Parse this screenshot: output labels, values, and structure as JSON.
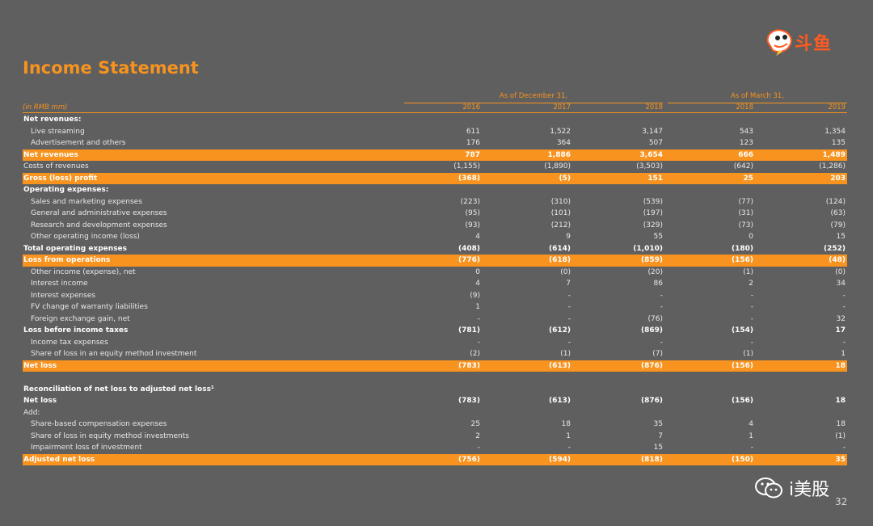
{
  "title": "Income Statement",
  "logo": {
    "text": "斗鱼"
  },
  "header": {
    "group_dec": "As of December 31,",
    "group_mar": "As of March 31,",
    "unit": "(in RMB mm)",
    "years": [
      "2016",
      "2017",
      "2018",
      "2018",
      "2019"
    ]
  },
  "rows": [
    {
      "label": "Net revenues:",
      "style": "bold",
      "indent": false,
      "values": [
        "",
        "",
        "",
        "",
        ""
      ]
    },
    {
      "label": "Live streaming",
      "style": "normal",
      "indent": true,
      "values": [
        "611",
        "1,522",
        "3,147",
        "543",
        "1,354"
      ]
    },
    {
      "label": "Advertisement and others",
      "style": "normal",
      "indent": true,
      "values": [
        "176",
        "364",
        "507",
        "123",
        "135"
      ]
    },
    {
      "label": "Net revenues",
      "style": "hl",
      "indent": false,
      "values": [
        "787",
        "1,886",
        "3,654",
        "666",
        "1,489"
      ]
    },
    {
      "label": "Costs of revenues",
      "style": "normal",
      "indent": false,
      "values": [
        "(1,155)",
        "(1,890)",
        "(3,503)",
        "(642)",
        "(1,286)"
      ]
    },
    {
      "label": "Gross (loss) profit",
      "style": "hl",
      "indent": false,
      "values": [
        "(368)",
        "(5)",
        "151",
        "25",
        "203"
      ]
    },
    {
      "label": "Operating expenses:",
      "style": "bold",
      "indent": false,
      "values": [
        "",
        "",
        "",
        "",
        ""
      ]
    },
    {
      "label": "Sales and marketing expenses",
      "style": "normal",
      "indent": true,
      "values": [
        "(223)",
        "(310)",
        "(539)",
        "(77)",
        "(124)"
      ]
    },
    {
      "label": "General and administrative expenses",
      "style": "normal",
      "indent": true,
      "values": [
        "(95)",
        "(101)",
        "(197)",
        "(31)",
        "(63)"
      ]
    },
    {
      "label": "Research and development expenses",
      "style": "normal",
      "indent": true,
      "values": [
        "(93)",
        "(212)",
        "(329)",
        "(73)",
        "(79)"
      ]
    },
    {
      "label": "Other operating income (loss)",
      "style": "normal",
      "indent": true,
      "values": [
        "4",
        "9",
        "55",
        "0",
        "15"
      ]
    },
    {
      "label": "Total operating expenses",
      "style": "bold",
      "indent": false,
      "values": [
        "(408)",
        "(614)",
        "(1,010)",
        "(180)",
        "(252)"
      ]
    },
    {
      "label": "Loss from operations",
      "style": "hl",
      "indent": false,
      "values": [
        "(776)",
        "(618)",
        "(859)",
        "(156)",
        "(48)"
      ]
    },
    {
      "label": "Other income (expense), net",
      "style": "normal",
      "indent": true,
      "values": [
        "0",
        "(0)",
        "(20)",
        "(1)",
        "(0)"
      ]
    },
    {
      "label": "Interest income",
      "style": "normal",
      "indent": true,
      "values": [
        "4",
        "7",
        "86",
        "2",
        "34"
      ]
    },
    {
      "label": "Interest expenses",
      "style": "normal",
      "indent": true,
      "values": [
        "(9)",
        "-",
        "-",
        "-",
        "-"
      ]
    },
    {
      "label": "FV change of warranty liabilities",
      "style": "normal",
      "indent": true,
      "values": [
        "1",
        "-",
        "-",
        "-",
        "-"
      ]
    },
    {
      "label": "Foreign exchange gain, net",
      "style": "normal",
      "indent": true,
      "values": [
        "-",
        "-",
        "(76)",
        "-",
        "32"
      ]
    },
    {
      "label": "Loss before income taxes",
      "style": "bold",
      "indent": false,
      "values": [
        "(781)",
        "(612)",
        "(869)",
        "(154)",
        "17"
      ]
    },
    {
      "label": "Income tax expenses",
      "style": "normal",
      "indent": true,
      "values": [
        "-",
        "-",
        "-",
        "-",
        "-"
      ]
    },
    {
      "label": "Share of loss in an equity method investment",
      "style": "normal",
      "indent": true,
      "values": [
        "(2)",
        "(1)",
        "(7)",
        "(1)",
        "1"
      ]
    },
    {
      "label": "Net loss",
      "style": "hl",
      "indent": false,
      "values": [
        "(783)",
        "(613)",
        "(876)",
        "(156)",
        "18"
      ]
    },
    {
      "label": "",
      "style": "spacer",
      "indent": false,
      "values": [
        "",
        "",
        "",
        "",
        ""
      ]
    },
    {
      "label": "Reconciliation of net loss to adjusted net loss¹",
      "style": "bold",
      "indent": false,
      "values": [
        "",
        "",
        "",
        "",
        ""
      ]
    },
    {
      "label": "Net loss",
      "style": "bold",
      "indent": false,
      "values": [
        "(783)",
        "(613)",
        "(876)",
        "(156)",
        "18"
      ]
    },
    {
      "label": "Add:",
      "style": "normal",
      "indent": false,
      "values": [
        "",
        "",
        "",
        "",
        ""
      ]
    },
    {
      "label": "Share-based compensation expenses",
      "style": "normal",
      "indent": true,
      "values": [
        "25",
        "18",
        "35",
        "4",
        "18"
      ]
    },
    {
      "label": "Share of loss in equity method investments",
      "style": "normal",
      "indent": true,
      "values": [
        "2",
        "1",
        "7",
        "1",
        "(1)"
      ]
    },
    {
      "label": "Impairment loss of investment",
      "style": "normal",
      "indent": true,
      "values": [
        "-",
        "-",
        "15",
        "-",
        "-"
      ]
    },
    {
      "label": "Adjusted net loss",
      "style": "hl",
      "indent": false,
      "values": [
        "(756)",
        "(594)",
        "(818)",
        "(150)",
        "35"
      ]
    }
  ],
  "watermark": "i美股",
  "page_number": "32",
  "colors": {
    "accent": "#f7931e",
    "background": "#5f5f5f",
    "logo": "#ff5a1f"
  }
}
